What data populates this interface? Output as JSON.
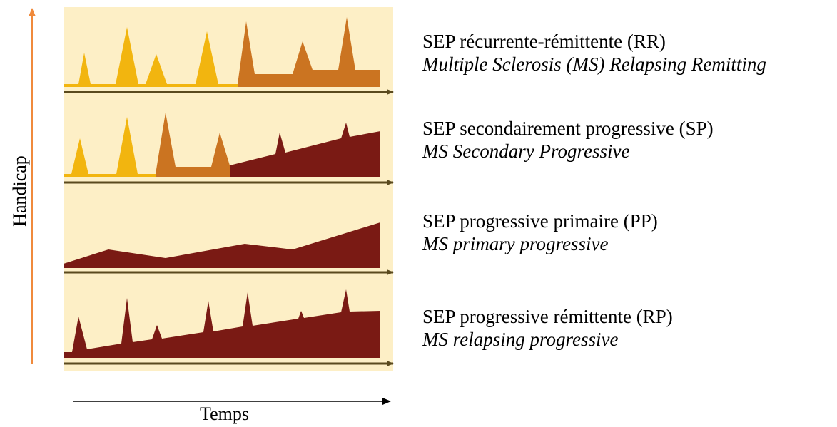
{
  "axes": {
    "y_label": "Handicap",
    "x_label": "Temps"
  },
  "colors": {
    "panel_background": "#fdefc6",
    "relapse_yellow": "#f2b50f",
    "relapse_orange": "#cb7421",
    "progression_dark": "#7a1a14",
    "baseline": "#5a4a1e",
    "y_arrow": "#f08a3c",
    "x_arrow": "#000000"
  },
  "panels": [
    {
      "fr": "SEP récurrente-rémittente (RR)",
      "en": "Multiple Sclerosis (MS) Relapsing Remitting"
    },
    {
      "fr": "SEP secondairement progressive (SP)",
      "en": "MS Secondary Progressive"
    },
    {
      "fr": "SEP progressive primaire (PP)",
      "en": "MS primary progressive"
    },
    {
      "fr": "SEP progressive rémittente (RP)",
      "en": "MS relapsing progressive"
    }
  ]
}
